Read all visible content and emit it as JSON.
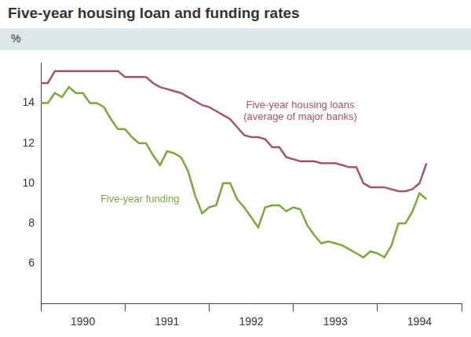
{
  "chart_data": {
    "type": "line",
    "title": "Five-year housing loan and funding rates",
    "y_label": "%",
    "categories": [
      null,
      null,
      null,
      null,
      null,
      null,
      "1990",
      null,
      null,
      null,
      null,
      null,
      null,
      null,
      null,
      null,
      null,
      null,
      "1991",
      null,
      null,
      null,
      null,
      null,
      null,
      null,
      null,
      null,
      null,
      null,
      "1992",
      null,
      null,
      null,
      null,
      null,
      null,
      null,
      null,
      null,
      null,
      null,
      "1993",
      null,
      null,
      null,
      null,
      null,
      null,
      null,
      null,
      null,
      null,
      null,
      "1994",
      null,
      null,
      null,
      null,
      null,
      null
    ],
    "series": [
      {
        "name": "Five-year housing loans",
        "color": "#a0566b",
        "values": [
          15.0,
          15.0,
          15.6,
          15.6,
          15.6,
          15.6,
          15.6,
          15.6,
          15.6,
          15.6,
          15.6,
          15.6,
          15.3,
          15.3,
          15.3,
          15.3,
          15.0,
          14.8,
          14.7,
          14.6,
          14.5,
          14.3,
          14.1,
          13.9,
          13.8,
          13.6,
          13.4,
          13.2,
          12.8,
          12.4,
          12.3,
          12.3,
          12.2,
          11.8,
          11.8,
          11.3,
          11.2,
          11.1,
          11.1,
          11.1,
          11.0,
          11.0,
          11.0,
          10.9,
          10.8,
          10.8,
          10.0,
          9.8,
          9.8,
          9.8,
          9.7,
          9.6,
          9.6,
          9.7,
          10.0,
          11.0,
          null,
          null,
          null,
          null,
          null
        ]
      },
      {
        "name": "Five-year funding",
        "color": "#7aa83a",
        "values": [
          14.0,
          14.0,
          14.5,
          14.3,
          14.8,
          14.5,
          14.5,
          14.0,
          14.0,
          13.8,
          13.2,
          12.7,
          12.7,
          12.3,
          12.0,
          12.0,
          11.4,
          10.9,
          11.6,
          11.5,
          11.3,
          10.6,
          9.4,
          8.5,
          8.8,
          8.9,
          10.0,
          10.0,
          9.2,
          8.8,
          8.3,
          7.8,
          8.8,
          8.9,
          8.9,
          8.6,
          8.8,
          8.7,
          7.9,
          7.4,
          7.0,
          7.1,
          7.0,
          6.9,
          6.7,
          6.5,
          6.3,
          6.6,
          6.5,
          6.3,
          6.9,
          8.0,
          8.0,
          8.6,
          9.5,
          9.2,
          null,
          null,
          null,
          null,
          null
        ]
      }
    ],
    "annotations": [
      {
        "series": "Five-year housing loans",
        "text": "(average of major banks)"
      }
    ],
    "ylim": [
      4,
      16
    ],
    "yticks": [
      6,
      8,
      10,
      12,
      14
    ],
    "grid": false
  }
}
